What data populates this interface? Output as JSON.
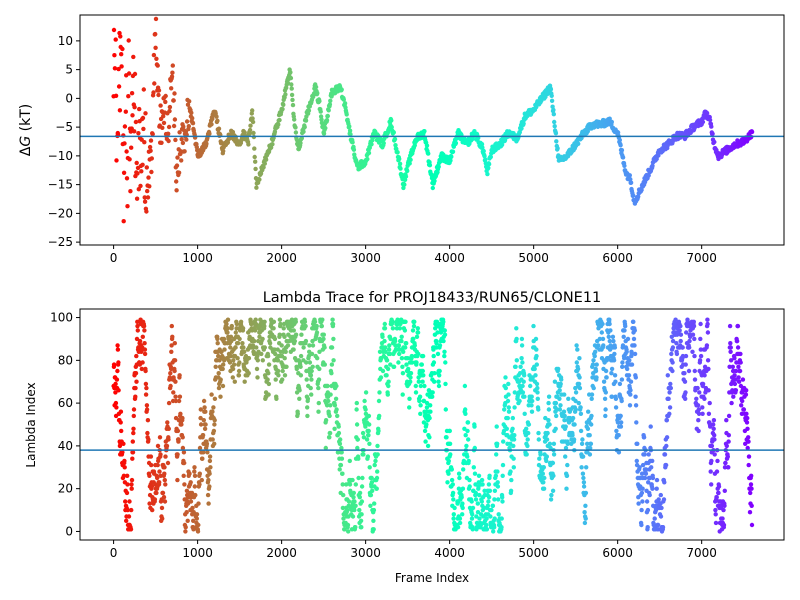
{
  "chart_data": [
    {
      "type": "scatter",
      "title": "",
      "xlabel": "",
      "ylabel_prefix": "Δ",
      "ylabel_var": "G",
      "ylabel_suffix": " (kT)",
      "xlim": [
        -400,
        7980
      ],
      "ylim": [
        -25.5,
        14.5
      ],
      "xticks": [
        0,
        1000,
        2000,
        3000,
        4000,
        5000,
        6000,
        7000
      ],
      "yticks": [
        10,
        5,
        0,
        -5,
        -10,
        -15,
        -20,
        -25
      ],
      "hline": -6.6,
      "hline_color": "#1f77b4",
      "colormap": "rainbow (red at frame 0 → violet at last frame)",
      "x_max": 7600,
      "grid": false,
      "trace": [
        [
          0,
          0.0
        ],
        [
          20,
          13.0
        ],
        [
          40,
          -20.0
        ],
        [
          60,
          8.0
        ],
        [
          80,
          2.0
        ],
        [
          100,
          12.0
        ],
        [
          120,
          -22.0
        ],
        [
          140,
          10.0
        ],
        [
          160,
          -18.0
        ],
        [
          180,
          5.0
        ],
        [
          200,
          -12.0
        ],
        [
          220,
          6.0
        ],
        [
          240,
          1.0
        ],
        [
          260,
          -5.0
        ],
        [
          280,
          -24.0
        ],
        [
          300,
          -8.0
        ],
        [
          350,
          -4.0
        ],
        [
          400,
          -15.0
        ],
        [
          450,
          -9.0
        ],
        [
          500,
          12.0
        ],
        [
          550,
          -6.0
        ],
        [
          600,
          -2.0
        ],
        [
          650,
          -5.0
        ],
        [
          700,
          7.0
        ],
        [
          750,
          -13.0
        ],
        [
          800,
          -8.0
        ],
        [
          850,
          -5.0
        ],
        [
          900,
          -1.0
        ],
        [
          950,
          -5.0
        ],
        [
          1000,
          -10.0
        ],
        [
          1100,
          -8.0
        ],
        [
          1200,
          -2.0
        ],
        [
          1300,
          -9.0
        ],
        [
          1400,
          -6.0
        ],
        [
          1500,
          -8.0
        ],
        [
          1550,
          -6.0
        ],
        [
          1600,
          -8.0
        ],
        [
          1650,
          -2.0
        ],
        [
          1700,
          -15.0
        ],
        [
          1800,
          -11.0
        ],
        [
          1900,
          -7.0
        ],
        [
          2000,
          -2.0
        ],
        [
          2100,
          5.0
        ],
        [
          2150,
          -4.0
        ],
        [
          2200,
          -9.0
        ],
        [
          2300,
          -3.0
        ],
        [
          2400,
          2.0
        ],
        [
          2450,
          -1.0
        ],
        [
          2500,
          -6.0
        ],
        [
          2600,
          1.0
        ],
        [
          2700,
          2.0
        ],
        [
          2750,
          -1.0
        ],
        [
          2800,
          -5.0
        ],
        [
          2900,
          -12.0
        ],
        [
          3000,
          -11.0
        ],
        [
          3100,
          -6.0
        ],
        [
          3200,
          -8.0
        ],
        [
          3300,
          -4.0
        ],
        [
          3400,
          -11.0
        ],
        [
          3450,
          -15.0
        ],
        [
          3500,
          -12.0
        ],
        [
          3600,
          -7.0
        ],
        [
          3700,
          -6.0
        ],
        [
          3800,
          -15.0
        ],
        [
          3900,
          -10.0
        ],
        [
          4000,
          -11.0
        ],
        [
          4100,
          -6.0
        ],
        [
          4200,
          -8.0
        ],
        [
          4300,
          -6.0
        ],
        [
          4400,
          -9.0
        ],
        [
          4450,
          -13.0
        ],
        [
          4500,
          -9.0
        ],
        [
          4600,
          -8.0
        ],
        [
          4700,
          -6.0
        ],
        [
          4800,
          -7.0
        ],
        [
          4900,
          -3.0
        ],
        [
          5000,
          -2.0
        ],
        [
          5100,
          0.0
        ],
        [
          5200,
          2.0
        ],
        [
          5300,
          -11.0
        ],
        [
          5400,
          -10.0
        ],
        [
          5500,
          -8.0
        ],
        [
          5600,
          -6.0
        ],
        [
          5700,
          -4.5
        ],
        [
          5800,
          -4.5
        ],
        [
          5900,
          -4.0
        ],
        [
          6000,
          -6.0
        ],
        [
          6100,
          -13.0
        ],
        [
          6150,
          -14.0
        ],
        [
          6200,
          -18.0
        ],
        [
          6300,
          -15.0
        ],
        [
          6400,
          -12.0
        ],
        [
          6500,
          -9.0
        ],
        [
          6600,
          -8.0
        ],
        [
          6700,
          -6.5
        ],
        [
          6800,
          -6.5
        ],
        [
          6900,
          -5.0
        ],
        [
          7000,
          -4.0
        ],
        [
          7050,
          -2.5
        ],
        [
          7100,
          -4.0
        ],
        [
          7150,
          -8.0
        ],
        [
          7200,
          -10.0
        ],
        [
          7300,
          -9.0
        ],
        [
          7400,
          -8.0
        ],
        [
          7500,
          -7.5
        ],
        [
          7600,
          -6.0
        ]
      ]
    },
    {
      "type": "scatter",
      "title": "Lambda Trace for PROJ18433/RUN65/CLONE11",
      "xlabel": "Frame Index",
      "ylabel": "Lambda Index",
      "xlim": [
        -400,
        7980
      ],
      "ylim": [
        -4,
        104
      ],
      "xticks": [
        0,
        1000,
        2000,
        3000,
        4000,
        5000,
        6000,
        7000
      ],
      "yticks": [
        0,
        20,
        40,
        60,
        80,
        100
      ],
      "hline": 38,
      "hline_color": "#1f77b4",
      "colormap": "rainbow (red at frame 0 → violet at last frame)",
      "x_max": 7600,
      "lambda_min": 0,
      "lambda_max": 99,
      "grid": false
    }
  ]
}
